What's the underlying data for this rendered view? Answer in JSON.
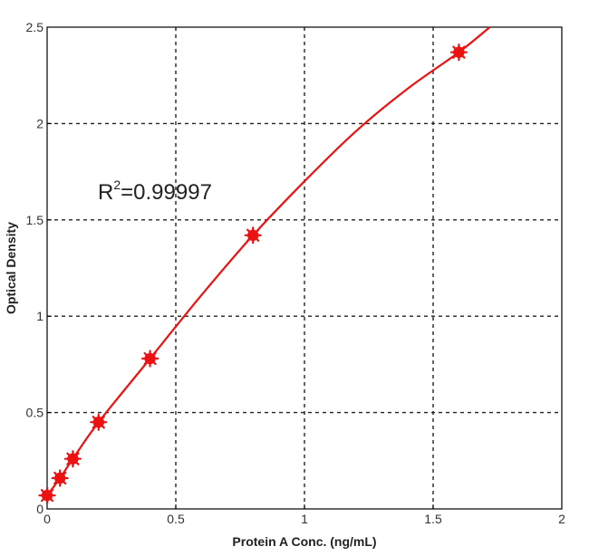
{
  "chart_data": {
    "type": "scatter",
    "xlabel": "Protein A Conc. (ng/mL)",
    "ylabel": "Optical Density",
    "xlim": [
      0,
      2
    ],
    "ylim": [
      0,
      2.5
    ],
    "x_ticks": [
      0,
      0.5,
      1,
      1.5,
      2
    ],
    "y_ticks": [
      0,
      0.5,
      1,
      1.5,
      2,
      2.5
    ],
    "x_tick_labels": [
      "0",
      "0.5",
      "1",
      "1.5",
      "2"
    ],
    "y_tick_labels": [
      "0",
      "0.5",
      "1",
      "1.5",
      "2",
      "2.5"
    ],
    "grid": true,
    "annotation": {
      "base": "R",
      "sup": "2",
      "value": "=0.99997"
    },
    "points": [
      {
        "x": 0,
        "y": 0.07
      },
      {
        "x": 0.05,
        "y": 0.16
      },
      {
        "x": 0.1,
        "y": 0.26
      },
      {
        "x": 0.2,
        "y": 0.45
      },
      {
        "x": 0.4,
        "y": 0.78
      },
      {
        "x": 0.8,
        "y": 1.42
      },
      {
        "x": 1.6,
        "y": 2.37
      }
    ],
    "fit_curve": {
      "x": [
        0,
        0.05,
        0.1,
        0.2,
        0.4,
        0.6,
        0.8,
        1.0,
        1.2,
        1.4,
        1.6,
        1.72
      ],
      "y": [
        0.07,
        0.16,
        0.26,
        0.45,
        0.78,
        1.11,
        1.42,
        1.7,
        1.96,
        2.18,
        2.37,
        2.5
      ]
    },
    "colors": {
      "series": "#ee1111",
      "grid": "#222222",
      "axis": "#000000"
    }
  }
}
